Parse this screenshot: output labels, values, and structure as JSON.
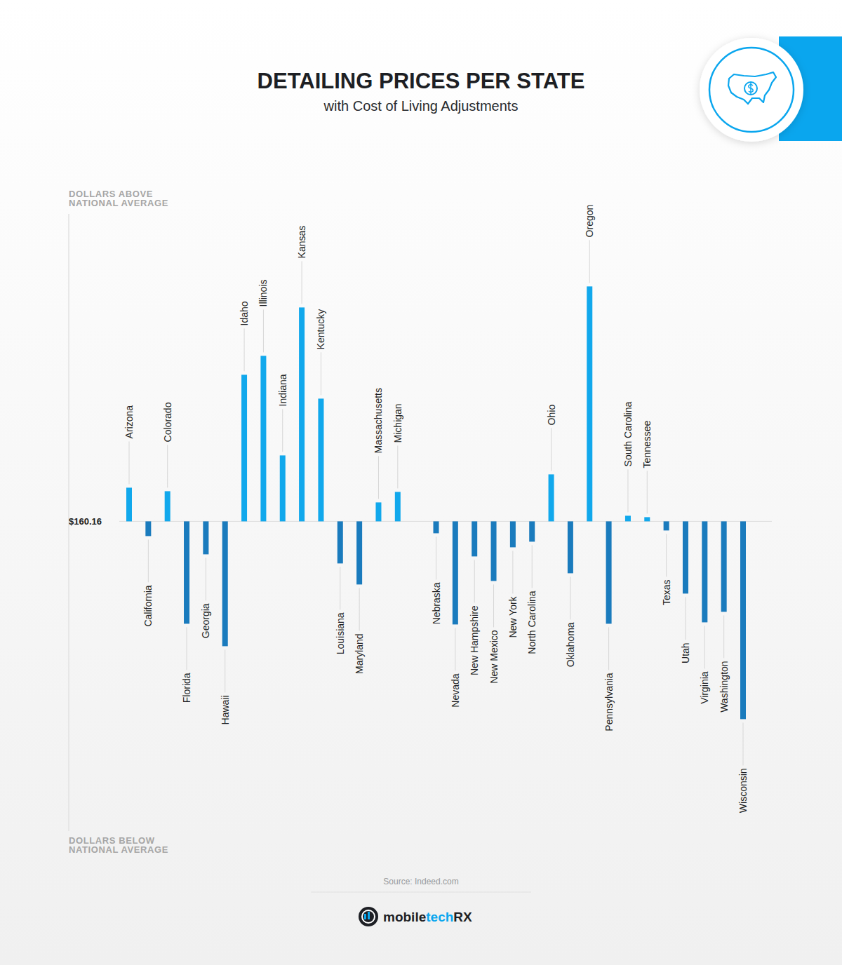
{
  "chart_data": {
    "type": "bar",
    "title": "DETAILING PRICES PER STATE",
    "subtitle": "with Cost of Living Adjustments",
    "axis_label_above": [
      "DOLLARS ABOVE",
      "NATIONAL AVERAGE"
    ],
    "axis_label_below": [
      "DOLLARS BELOW",
      "NATIONAL AVERAGE"
    ],
    "source": "Source: Indeed.com",
    "brand": [
      "mobile",
      "tech",
      "RX"
    ],
    "categories": [
      "Arizona",
      "California",
      "Colorado",
      "Florida",
      "Georgia",
      "Hawaii",
      "Idaho",
      "Illinois",
      "Indiana",
      "Kansas",
      "Kentucky",
      "Louisiana",
      "Maryland",
      "Massachusetts",
      "Michigan",
      null,
      "Nebraska",
      "Nevada",
      "New Hampshire",
      "New Mexico",
      "New York",
      "North Carolina",
      "Ohio",
      "Oklahoma",
      "Oregon",
      "Pennsylvania",
      "South Carolina",
      "Tennessee",
      "Texas",
      "Utah",
      "Virginia",
      "Washington",
      "Wisconsin"
    ],
    "values": [
      164.96,
      158.06,
      164.46,
      145.56,
      155.46,
      142.36,
      181.06,
      183.76,
      169.56,
      190.66,
      177.66,
      154.16,
      151.16,
      162.86,
      164.36,
      null,
      158.46,
      145.46,
      155.16,
      151.66,
      156.46,
      157.26,
      166.86,
      152.76,
      193.66,
      145.56,
      160.96,
      160.76,
      158.86,
      149.86,
      145.76,
      147.26,
      131.96
    ],
    "colors": [
      "#11a8ec",
      "#1a7bbd",
      "#11a8ec",
      "#1a7bbd",
      "#1a7bbd",
      "#1a7bbd",
      "#11a8ec",
      "#11a8ec",
      "#11a8ec",
      "#11a8ec",
      "#11a8ec",
      "#1a7bbd",
      "#1a7bbd",
      "#11a8ec",
      "#11a8ec",
      null,
      "#1a7bbd",
      "#1a7bbd",
      "#1a7bbd",
      "#1a7bbd",
      "#1a7bbd",
      "#1a7bbd",
      "#11a8ec",
      "#1a7bbd",
      "#11a8ec",
      "#1a7bbd",
      "#11a8ec",
      "#11a8ec",
      "#1a7bbd",
      "#1a7bbd",
      "#1a7bbd",
      "#1a7bbd",
      "#1a7bbd"
    ],
    "ylim": [
      116,
      204
    ],
    "yticks": [
      {
        "value": 160.16,
        "label": "$160.16"
      }
    ],
    "grid": false,
    "tick_labels": "y"
  }
}
